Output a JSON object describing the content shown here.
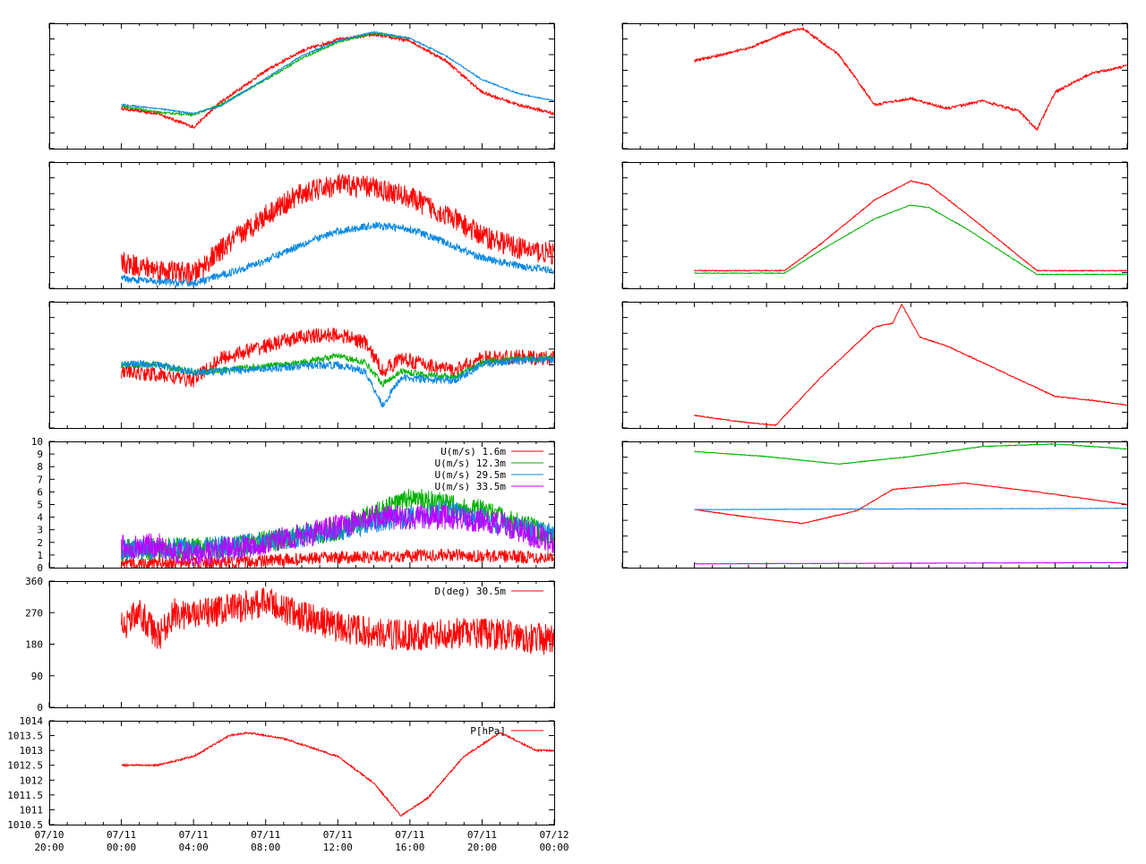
{
  "figure": {
    "x_tick_labels": [
      {
        "date": "07/10",
        "time": "20:00"
      },
      {
        "date": "07/11",
        "time": "00:00"
      },
      {
        "date": "07/11",
        "time": "04:00"
      },
      {
        "date": "07/11",
        "time": "08:00"
      },
      {
        "date": "07/11",
        "time": "12:00"
      },
      {
        "date": "07/11",
        "time": "16:00"
      },
      {
        "date": "07/11",
        "time": "20:00"
      },
      {
        "date": "07/12",
        "time": "00:00"
      }
    ]
  },
  "colors": {
    "red": "#ff0000",
    "green": "#00b000",
    "blue": "#0a88e0",
    "purple": "#c000ff"
  },
  "chart_data": [
    {
      "id": "L1",
      "type": "line",
      "xlim": [
        "07/10 20:00",
        "07/12 00:00"
      ],
      "grid": false,
      "series": [
        {
          "color": "red",
          "x": [
            "07/11 00:00",
            "07/11 02:00",
            "07/11 04:00",
            "07/11 05:30",
            "07/11 08:00",
            "07/11 10:00",
            "07/11 12:00",
            "07/11 14:00",
            "07/11 16:00",
            "07/11 18:00",
            "07/11 20:00",
            "07/11 22:00",
            "07/12 00:00"
          ],
          "y": [
            0.32,
            0.28,
            0.17,
            0.37,
            0.62,
            0.78,
            0.87,
            0.91,
            0.86,
            0.7,
            0.45,
            0.35,
            0.28
          ]
        },
        {
          "color": "green",
          "x": [
            "07/11 00:00",
            "07/11 02:00",
            "07/11 04:00",
            "07/11 05:30",
            "07/11 08:00",
            "07/11 10:00",
            "07/11 12:00",
            "07/11 14:00",
            "07/11 16:00"
          ],
          "y": [
            0.34,
            0.29,
            0.27,
            0.35,
            0.55,
            0.72,
            0.85,
            0.92,
            0.88
          ]
        },
        {
          "color": "blue",
          "x": [
            "07/11 00:00",
            "07/11 02:00",
            "07/11 04:00",
            "07/11 05:30",
            "07/11 08:00",
            "07/11 10:00",
            "07/11 12:00",
            "07/11 14:00",
            "07/11 16:00",
            "07/11 18:00",
            "07/11 20:00",
            "07/11 22:00",
            "07/12 00:00"
          ],
          "y": [
            0.35,
            0.32,
            0.28,
            0.34,
            0.56,
            0.74,
            0.86,
            0.93,
            0.88,
            0.74,
            0.55,
            0.44,
            0.38
          ]
        }
      ]
    },
    {
      "id": "L2",
      "type": "line",
      "xlim": [
        "07/10 20:00",
        "07/12 00:00"
      ],
      "grid": false,
      "series": [
        {
          "color": "red",
          "x": [
            "07/11 00:00",
            "07/11 02:00",
            "07/11 04:00",
            "07/11 05:30",
            "07/11 08:00",
            "07/11 10:00",
            "07/11 12:00",
            "07/11 14:00",
            "07/11 16:00",
            "07/11 18:00",
            "07/11 20:00",
            "07/11 22:00",
            "07/12 00:00"
          ],
          "y": [
            0.2,
            0.15,
            0.11,
            0.3,
            0.58,
            0.75,
            0.82,
            0.8,
            0.72,
            0.58,
            0.42,
            0.32,
            0.27
          ]
        },
        {
          "color": "blue",
          "x": [
            "07/11 00:00",
            "07/11 02:00",
            "07/11 04:00",
            "07/11 05:30",
            "07/11 08:00",
            "07/11 10:00",
            "07/11 12:00",
            "07/11 14:00",
            "07/11 16:00",
            "07/11 18:00",
            "07/11 20:00",
            "07/11 22:00",
            "07/12 00:00"
          ],
          "y": [
            0.08,
            0.05,
            0.04,
            0.1,
            0.22,
            0.35,
            0.45,
            0.5,
            0.47,
            0.36,
            0.24,
            0.18,
            0.14
          ]
        }
      ]
    },
    {
      "id": "L3",
      "type": "line",
      "xlim": [
        "07/10 20:00",
        "07/12 00:00"
      ],
      "grid": false,
      "series": [
        {
          "color": "red",
          "x": [
            "07/11 00:00",
            "07/11 02:00",
            "07/11 04:00",
            "07/11 05:30",
            "07/11 08:00",
            "07/11 10:00",
            "07/11 12:00",
            "07/11 13:30",
            "07/11 14:30",
            "07/11 15:30",
            "07/11 17:00",
            "07/11 18:30",
            "07/11 20:00",
            "07/11 22:00",
            "07/12 00:00"
          ],
          "y": [
            0.45,
            0.42,
            0.38,
            0.55,
            0.65,
            0.72,
            0.74,
            0.68,
            0.45,
            0.55,
            0.5,
            0.45,
            0.55,
            0.56,
            0.55
          ]
        },
        {
          "color": "green",
          "x": [
            "07/11 00:00",
            "07/11 02:00",
            "07/11 04:00",
            "07/11 05:30",
            "07/11 08:00",
            "07/11 10:00",
            "07/11 12:00",
            "07/11 13:30",
            "07/11 14:30",
            "07/11 15:30",
            "07/11 17:00",
            "07/11 18:30",
            "07/11 20:00",
            "07/11 22:00",
            "07/12 00:00"
          ],
          "y": [
            0.5,
            0.5,
            0.44,
            0.46,
            0.49,
            0.52,
            0.57,
            0.52,
            0.35,
            0.45,
            0.42,
            0.4,
            0.52,
            0.55,
            0.55
          ]
        },
        {
          "color": "blue",
          "x": [
            "07/11 00:00",
            "07/11 02:00",
            "07/11 04:00",
            "07/11 05:30",
            "07/11 08:00",
            "07/11 10:00",
            "07/11 12:00",
            "07/11 13:30",
            "07/11 14:30",
            "07/11 15:30",
            "07/11 17:00",
            "07/11 18:30",
            "07/11 20:00",
            "07/11 22:00",
            "07/12 00:00"
          ],
          "y": [
            0.51,
            0.5,
            0.44,
            0.45,
            0.47,
            0.49,
            0.5,
            0.45,
            0.18,
            0.4,
            0.38,
            0.38,
            0.5,
            0.54,
            0.54
          ]
        }
      ]
    },
    {
      "id": "L4",
      "type": "line",
      "xlim": [
        "07/10 20:00",
        "07/12 00:00"
      ],
      "ylim": [
        0,
        10
      ],
      "grid": false,
      "yticks": [
        "0",
        "1",
        "2",
        "3",
        "4",
        "5",
        "6",
        "7",
        "8",
        "9",
        "10"
      ],
      "legend_position": "top-right",
      "series": [
        {
          "name": "U(m/s)  1.6m",
          "color": "red",
          "x": [
            "07/11 00:00",
            "07/11 06:00",
            "07/11 12:00",
            "07/11 18:00",
            "07/12 00:00"
          ],
          "y": [
            0.3,
            0.4,
            0.8,
            1.0,
            0.8
          ]
        },
        {
          "name": "U(m/s) 12.3m",
          "color": "green",
          "x": [
            "07/11 00:00",
            "07/11 06:00",
            "07/11 12:00",
            "07/11 16:00",
            "07/11 20:00",
            "07/12 00:00"
          ],
          "y": [
            1.4,
            1.6,
            3.0,
            5.5,
            4.5,
            2.5
          ]
        },
        {
          "name": "U(m/s) 29.5m",
          "color": "blue",
          "x": [
            "07/11 00:00",
            "07/11 06:00",
            "07/11 12:00",
            "07/11 18:00",
            "07/12 00:00"
          ],
          "y": [
            1.4,
            1.6,
            3.0,
            4.5,
            2.5
          ]
        },
        {
          "name": "U(m/s) 33.5m",
          "color": "purple",
          "x": [
            "07/11 00:00",
            "07/11 02:00",
            "07/11 04:00",
            "07/11 06:00",
            "07/11 10:00",
            "07/11 14:00",
            "07/11 18:00",
            "07/11 21:00",
            "07/12 00:00"
          ],
          "y": [
            1.6,
            1.8,
            0.9,
            1.5,
            2.5,
            4.0,
            4.0,
            3.5,
            2.0
          ]
        }
      ]
    },
    {
      "id": "L5",
      "type": "line",
      "xlim": [
        "07/10 20:00",
        "07/12 00:00"
      ],
      "ylim": [
        0,
        360
      ],
      "grid": false,
      "yticks": [
        "0",
        "90",
        "180",
        "270",
        "360"
      ],
      "legend_position": "top-right",
      "series": [
        {
          "name": "D(deg)  30.5m",
          "color": "red",
          "x": [
            "07/11 00:00",
            "07/11 01:00",
            "07/11 02:00",
            "07/11 03:00",
            "07/11 04:00",
            "07/11 06:00",
            "07/11 08:00",
            "07/11 10:00",
            "07/11 12:00",
            "07/11 14:00",
            "07/11 16:00",
            "07/11 18:00",
            "07/11 20:00",
            "07/11 22:00",
            "07/12 00:00"
          ],
          "y": [
            230,
            270,
            200,
            270,
            260,
            280,
            300,
            260,
            230,
            210,
            205,
            210,
            210,
            205,
            190
          ]
        }
      ]
    },
    {
      "id": "L6",
      "type": "line",
      "xlim": [
        "07/10 20:00",
        "07/12 00:00"
      ],
      "ylim": [
        1010.5,
        1014
      ],
      "grid": false,
      "yticks": [
        "1010.5",
        "1011",
        "1011.5",
        "1012",
        "1012.5",
        "1013",
        "1013.5",
        "1014"
      ],
      "legend_position": "top-right",
      "series": [
        {
          "name": "P[hPa]",
          "color": "red",
          "x": [
            "07/11 00:00",
            "07/11 02:00",
            "07/11 04:00",
            "07/11 06:00",
            "07/11 07:00",
            "07/11 09:00",
            "07/11 12:00",
            "07/11 14:00",
            "07/11 15:30",
            "07/11 17:00",
            "07/11 19:00",
            "07/11 21:00",
            "07/11 22:00",
            "07/11 23:00",
            "07/12 00:00"
          ],
          "y": [
            1012.5,
            1012.5,
            1012.8,
            1013.5,
            1013.6,
            1013.4,
            1012.8,
            1011.9,
            1010.8,
            1011.4,
            1012.8,
            1013.6,
            1013.3,
            1013.0,
            1013.0
          ]
        }
      ]
    },
    {
      "id": "R1",
      "type": "line",
      "xlim": [
        "07/10 20:00",
        "07/12 00:00"
      ],
      "grid": false,
      "series": [
        {
          "color": "red",
          "x": [
            "07/11 00:00",
            "07/11 03:00",
            "07/11 05:00",
            "07/11 06:00",
            "07/11 08:00",
            "07/11 09:00",
            "07/11 10:00",
            "07/11 12:00",
            "07/11 14:00",
            "07/11 16:00",
            "07/11 18:00",
            "07/11 19:00",
            "07/11 20:00",
            "07/11 22:00",
            "07/12 00:00"
          ],
          "y": [
            0.7,
            0.8,
            0.92,
            0.96,
            0.75,
            0.55,
            0.35,
            0.4,
            0.32,
            0.38,
            0.3,
            0.15,
            0.45,
            0.6,
            0.66
          ]
        }
      ]
    },
    {
      "id": "R2",
      "type": "line",
      "xlim": [
        "07/10 20:00",
        "07/12 00:00"
      ],
      "grid": false,
      "series": [
        {
          "color": "red",
          "x": [
            "07/11 00:00",
            "07/11 05:00",
            "07/11 07:00",
            "07/11 10:00",
            "07/11 12:00",
            "07/11 13:00",
            "07/11 15:00",
            "07/11 19:00",
            "07/12 00:00"
          ],
          "y": [
            0.14,
            0.14,
            0.35,
            0.7,
            0.85,
            0.82,
            0.6,
            0.14,
            0.14
          ]
        },
        {
          "color": "green",
          "x": [
            "07/11 00:00",
            "07/11 05:00",
            "07/11 07:00",
            "07/11 10:00",
            "07/11 12:00",
            "07/11 13:00",
            "07/11 15:00",
            "07/11 19:00",
            "07/12 00:00"
          ],
          "y": [
            0.12,
            0.12,
            0.3,
            0.55,
            0.66,
            0.64,
            0.48,
            0.11,
            0.11
          ]
        }
      ]
    },
    {
      "id": "R3",
      "type": "line",
      "xlim": [
        "07/10 20:00",
        "07/12 00:00"
      ],
      "grid": false,
      "series": [
        {
          "color": "red",
          "x": [
            "07/11 00:00",
            "07/11 02:30",
            "07/11 04:30",
            "07/11 07:00",
            "07/11 10:00",
            "07/11 11:00",
            "07/11 11:30",
            "07/11 12:30",
            "07/11 14:00",
            "07/11 17:00",
            "07/11 20:00",
            "07/11 22:00",
            "07/12 00:00"
          ],
          "y": [
            0.1,
            0.05,
            0.02,
            0.4,
            0.8,
            0.83,
            0.98,
            0.72,
            0.65,
            0.45,
            0.25,
            0.22,
            0.18
          ]
        }
      ]
    },
    {
      "id": "R4",
      "type": "line",
      "xlim": [
        "07/10 20:00",
        "07/12 00:00"
      ],
      "grid": false,
      "series": [
        {
          "color": "green",
          "x": [
            "07/11 00:00",
            "07/11 04:00",
            "07/11 08:00",
            "07/11 12:00",
            "07/11 16:00",
            "07/11 20:00",
            "07/12 00:00"
          ],
          "y": [
            0.92,
            0.88,
            0.82,
            0.88,
            0.96,
            0.98,
            0.94
          ]
        },
        {
          "color": "red",
          "x": [
            "07/11 00:00",
            "07/11 03:00",
            "07/11 06:00",
            "07/11 09:00",
            "07/11 11:00",
            "07/11 15:00",
            "07/11 19:00",
            "07/12 00:00"
          ],
          "y": [
            0.46,
            0.4,
            0.35,
            0.45,
            0.62,
            0.67,
            0.6,
            0.5
          ]
        },
        {
          "color": "blue",
          "x": [
            "07/11 00:00",
            "07/12 00:00"
          ],
          "y": [
            0.46,
            0.47
          ]
        },
        {
          "color": "purple",
          "x": [
            "07/11 00:00",
            "07/12 00:00"
          ],
          "y": [
            0.03,
            0.04
          ]
        }
      ]
    }
  ]
}
